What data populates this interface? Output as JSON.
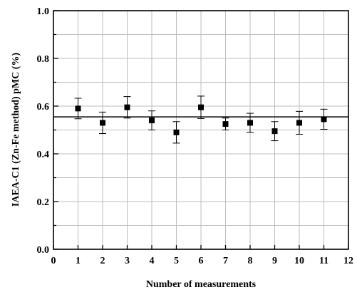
{
  "chart_data": {
    "type": "scatter",
    "title": "",
    "xlabel": "Number of measurements",
    "ylabel": "IAEA-C1 (Zn-Fe method) pMC (%)",
    "xlim": [
      0,
      12
    ],
    "ylim": [
      0.0,
      1.0
    ],
    "x_ticks": [
      "0",
      "1",
      "2",
      "3",
      "4",
      "5",
      "6",
      "7",
      "8",
      "9",
      "10",
      "11",
      "12"
    ],
    "y_ticks": [
      "0.0",
      "0.2",
      "0.4",
      "0.6",
      "0.8",
      "1.0"
    ],
    "grid": true,
    "x": [
      1,
      2,
      3,
      4,
      5,
      6,
      7,
      8,
      9,
      10,
      11
    ],
    "y": [
      0.59,
      0.53,
      0.595,
      0.54,
      0.49,
      0.595,
      0.525,
      0.53,
      0.495,
      0.53,
      0.545
    ],
    "error": [
      0.043,
      0.045,
      0.045,
      0.04,
      0.045,
      0.047,
      0.025,
      0.04,
      0.04,
      0.048,
      0.042
    ],
    "reference_line": {
      "y": 0.555
    }
  }
}
